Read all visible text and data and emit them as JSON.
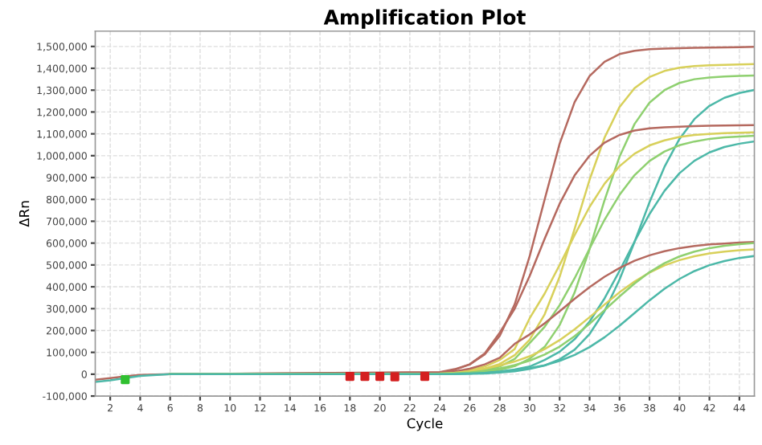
{
  "chart_data": {
    "type": "line",
    "title": "Amplification Plot",
    "xlabel": "Cycle",
    "ylabel": "ΔRn",
    "x": [
      6,
      24,
      25,
      26,
      27,
      28,
      29,
      30,
      31,
      32,
      33,
      34,
      35,
      36,
      37,
      38,
      39,
      40,
      41,
      42,
      43,
      44,
      45
    ],
    "series": [
      {
        "color": "#b5695f",
        "x": [
          1,
          2,
          3,
          4,
          6,
          24,
          25,
          26,
          27,
          28,
          29,
          30,
          31,
          32,
          33,
          34,
          35,
          36,
          37,
          38,
          39,
          40,
          41,
          42,
          43,
          44,
          45
        ],
        "values": [
          -25000,
          -18000,
          -10000,
          -3000,
          0,
          10000,
          23000,
          45000,
          91000,
          175000,
          320000,
          540000,
          800000,
          1055000,
          1245000,
          1365000,
          1430000,
          1465000,
          1480000,
          1487000,
          1490000,
          1492000,
          1494000,
          1495000,
          1496000,
          1497000,
          1498000
        ]
      },
      {
        "color": "#d8d05a",
        "values": [
          0,
          4000,
          7000,
          13000,
          25000,
          47000,
          87000,
          158000,
          274000,
          446000,
          665000,
          890000,
          1083000,
          1223000,
          1309000,
          1360000,
          1388000,
          1403000,
          1410000,
          1414000,
          1416000,
          1418000,
          1419000
        ]
      },
      {
        "color": "#8fd070",
        "values": [
          0,
          2000,
          3000,
          6000,
          10000,
          20000,
          37000,
          71000,
          125000,
          225000,
          374000,
          573000,
          797000,
          996000,
          1145000,
          1243000,
          1300000,
          1333000,
          1350000,
          1358000,
          1362000,
          1365000,
          1367000
        ]
      },
      {
        "color": "#4cb8a8",
        "x": [
          1,
          2,
          3,
          4,
          6,
          24,
          25,
          26,
          27,
          28,
          29,
          30,
          31,
          32,
          33,
          34,
          35,
          36,
          37,
          38,
          39,
          40,
          41,
          42,
          43,
          44,
          45
        ],
        "values": [
          -35000,
          -28000,
          -18000,
          -8000,
          0,
          1000,
          1000,
          2000,
          3000,
          8000,
          13000,
          24000,
          40000,
          68000,
          112000,
          184000,
          289000,
          433000,
          605000,
          787000,
          949000,
          1077000,
          1168000,
          1228000,
          1265000,
          1287000,
          1301000
        ]
      },
      {
        "color": "#b5695f",
        "values": [
          0,
          8000,
          20000,
          45000,
          95000,
          190000,
          300000,
          450000,
          620000,
          780000,
          910000,
          1000000,
          1060000,
          1095000,
          1115000,
          1125000,
          1130000,
          1133000,
          1135000,
          1137000,
          1138000,
          1139000,
          1140000
        ]
      },
      {
        "color": "#d8d05a",
        "values": [
          0,
          3000,
          8000,
          18000,
          35000,
          65000,
          115000,
          256000,
          369000,
          500000,
          637000,
          766000,
          872000,
          952000,
          1009000,
          1047000,
          1070000,
          1086000,
          1095000,
          1100000,
          1103000,
          1105000,
          1107000
        ]
      },
      {
        "color": "#8fd070",
        "values": [
          0,
          1000,
          3000,
          8000,
          18000,
          35000,
          70000,
          142000,
          217000,
          316000,
          439000,
          575000,
          707000,
          821000,
          911000,
          976000,
          1019000,
          1048000,
          1065000,
          1077000,
          1084000,
          1088000,
          1091000
        ]
      },
      {
        "color": "#4cb8a8",
        "values": [
          0,
          0,
          1000,
          3000,
          6000,
          12000,
          22000,
          35000,
          65000,
          103000,
          160000,
          241000,
          347000,
          473000,
          607000,
          733000,
          839000,
          920000,
          977000,
          1015000,
          1040000,
          1055000,
          1065000
        ]
      },
      {
        "color": "#b5695f",
        "values": [
          0,
          5000,
          12000,
          25000,
          45000,
          75000,
          139000,
          182000,
          233000,
          288000,
          345000,
          398000,
          446000,
          486000,
          519000,
          544000,
          563000,
          577000,
          587000,
          594000,
          598000,
          602000,
          605000
        ]
      },
      {
        "color": "#d8d05a",
        "values": [
          0,
          3000,
          7000,
          14000,
          25000,
          40000,
          58000,
          82000,
          115000,
          156000,
          205000,
          261000,
          319000,
          375000,
          424000,
          465000,
          498000,
          522000,
          540000,
          553000,
          561000,
          567000,
          571000
        ]
      },
      {
        "color": "#8fd070",
        "values": [
          0,
          2000,
          4000,
          8000,
          15000,
          26000,
          42000,
          62000,
          90000,
          126000,
          174000,
          231000,
          293000,
          356000,
          415000,
          467000,
          508000,
          539000,
          561000,
          577000,
          588000,
          595000,
          600000
        ]
      },
      {
        "color": "#4cb8a8",
        "values": [
          0,
          0,
          1000,
          3000,
          6000,
          11000,
          18000,
          28000,
          41000,
          61000,
          88000,
          124000,
          169000,
          222000,
          280000,
          338000,
          391000,
          436000,
          472000,
          499000,
          518000,
          532000,
          541000
        ]
      },
      {
        "type": "scatter",
        "marker": "square",
        "color": "#d42020",
        "x": [
          18,
          19,
          20,
          21,
          23
        ],
        "values": [
          -10000,
          -10000,
          -10000,
          -12000,
          -10000
        ]
      },
      {
        "type": "scatter",
        "marker": "square",
        "color": "#30c030",
        "x": [
          3
        ],
        "values": [
          -25000
        ]
      }
    ],
    "xlim": [
      1,
      45
    ],
    "xticks": [
      2,
      4,
      6,
      8,
      10,
      12,
      14,
      16,
      18,
      20,
      22,
      24,
      26,
      28,
      30,
      32,
      34,
      36,
      38,
      40,
      42,
      44
    ],
    "ylim": [
      -100000,
      1570000
    ],
    "yticks": [
      {
        "value": -100000,
        "label": "-100,000"
      },
      0,
      {
        "value": 100000,
        "label": "100,000"
      },
      {
        "value": 200000,
        "label": "200,000"
      },
      {
        "value": 300000,
        "label": "300,000"
      },
      {
        "value": 400000,
        "label": "400,000"
      },
      {
        "value": 500000,
        "label": "500,000"
      },
      {
        "value": 600000,
        "label": "600,000"
      },
      {
        "value": 700000,
        "label": "700,000"
      },
      {
        "value": 800000,
        "label": "800,000"
      },
      {
        "value": 900000,
        "label": "900,000"
      },
      {
        "value": 1000000,
        "label": "1,000,000"
      },
      {
        "value": 1100000,
        "label": "1,100,000"
      },
      {
        "value": 1200000,
        "label": "1,200,000"
      },
      {
        "value": 1300000,
        "label": "1,300,000"
      },
      {
        "value": 1400000,
        "label": "1,400,000"
      },
      {
        "value": 1500000,
        "label": "1,500,000"
      }
    ],
    "grid": true,
    "legend": false,
    "marker": "none",
    "line_style": "solid"
  }
}
